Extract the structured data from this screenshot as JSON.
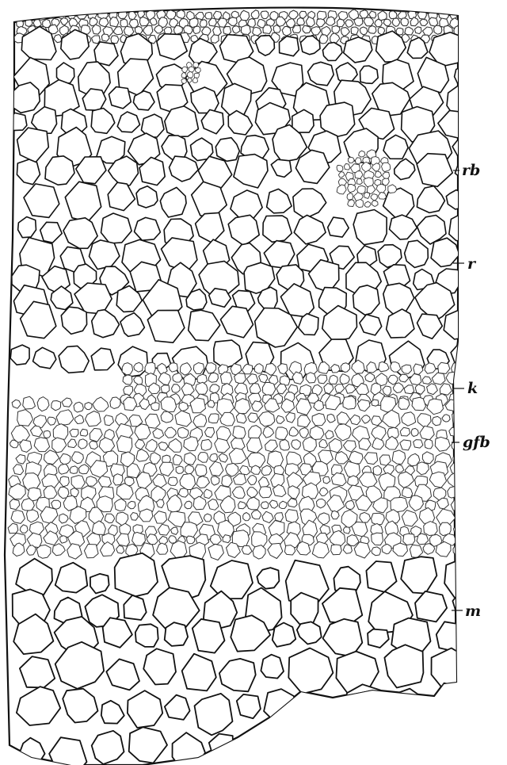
{
  "figure": {
    "labels": {
      "rb": "rb",
      "r": "r",
      "k": "k",
      "gfb": "gfb",
      "m": "m"
    },
    "colors": {
      "background": "#ffffff",
      "ink": "#111111",
      "fine_ink": "#333333"
    }
  }
}
